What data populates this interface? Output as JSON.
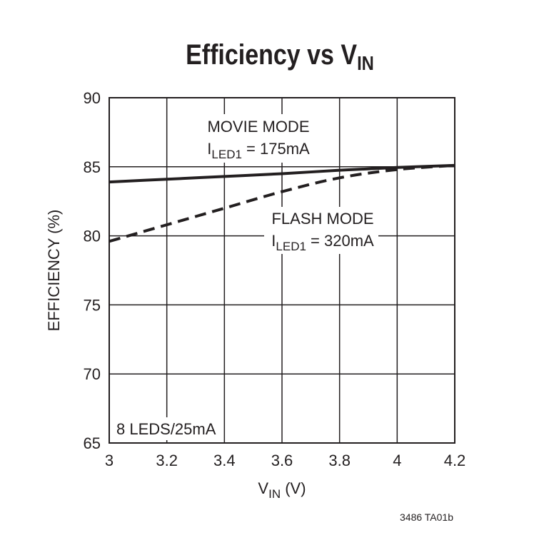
{
  "chart_data": {
    "type": "line",
    "title": "Efficiency vs V",
    "title_sub": "IN",
    "xlabel": "V",
    "xlabel_sub": "IN",
    "xlabel_unit": " (V)",
    "ylabel": "EFFICIENCY (%)",
    "xlim": [
      3,
      4.2
    ],
    "ylim": [
      65,
      90
    ],
    "xticks": [
      3,
      3.2,
      3.4,
      3.6,
      3.8,
      4,
      4.2
    ],
    "xtick_labels": [
      "3",
      "3.2",
      "3.4",
      "3.6",
      "3.8",
      "4",
      "4.2"
    ],
    "yticks": [
      65,
      70,
      75,
      80,
      85,
      90
    ],
    "ytick_labels": [
      "65",
      "70",
      "75",
      "80",
      "85",
      "90"
    ],
    "grid": true,
    "x": [
      3,
      3.2,
      3.4,
      3.6,
      3.8,
      4.0,
      4.2
    ],
    "series": [
      {
        "style": "solid",
        "color": "#231f20",
        "values": [
          83.9,
          84.1,
          84.3,
          84.5,
          84.75,
          84.95,
          85.1
        ]
      },
      {
        "style": "dashed",
        "color": "#231f20",
        "values": [
          79.6,
          80.8,
          82.0,
          83.2,
          84.2,
          84.8,
          85.1
        ]
      }
    ],
    "annotations": {
      "movie_line1": "MOVIE MODE",
      "movie_I": "I",
      "movie_sub": "LED1",
      "movie_val": " = 175mA",
      "flash_line1": "FLASH MODE",
      "flash_I": "I",
      "flash_sub": "LED1",
      "flash_val": " = 320mA",
      "condition": "8 LEDS/25mA"
    },
    "figure_id": "3486 TA01b"
  }
}
